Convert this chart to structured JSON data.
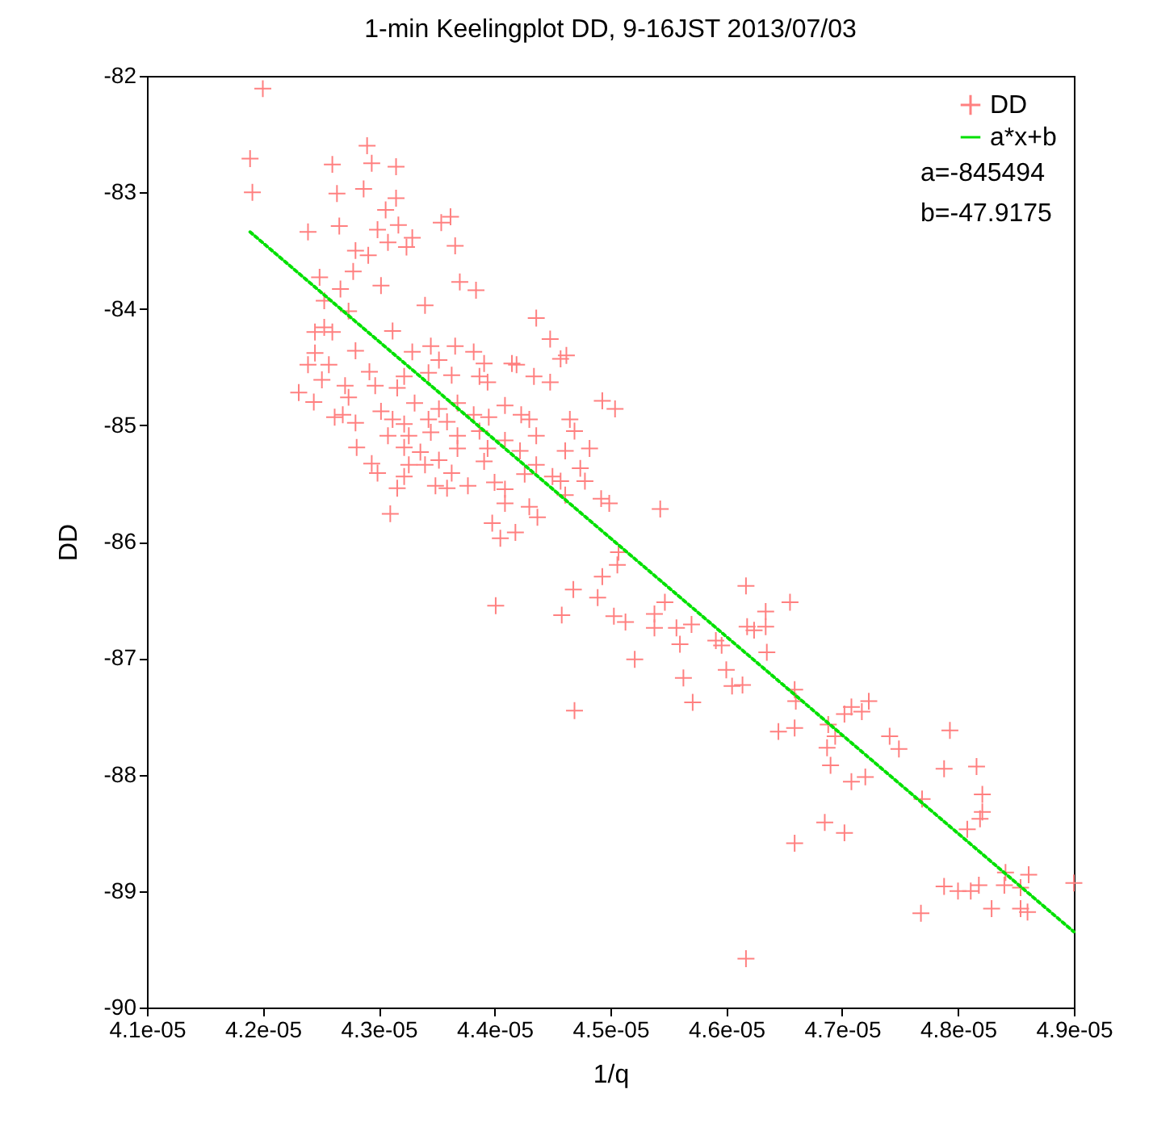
{
  "chart_data": {
    "type": "scatter",
    "title": "1-min Keelingplot DD, 9-16JST 2013/07/03",
    "xlabel": "1/q",
    "ylabel": "DD",
    "legend": "top right",
    "line_style": "dotted",
    "grid": false,
    "xlim": [
      4.1e-05,
      4.9e-05
    ],
    "ylim": [
      -90,
      -82
    ],
    "xticks": [
      {
        "value": 4.1e-05,
        "label": "4.1e-05"
      },
      {
        "value": 4.2e-05,
        "label": "4.2e-05"
      },
      {
        "value": 4.3e-05,
        "label": "4.3e-05"
      },
      {
        "value": 4.4e-05,
        "label": "4.4e-05"
      },
      {
        "value": 4.5e-05,
        "label": "4.5e-05"
      },
      {
        "value": 4.6e-05,
        "label": "4.6e-05"
      },
      {
        "value": 4.7e-05,
        "label": "4.7e-05"
      },
      {
        "value": 4.8e-05,
        "label": "4.8e-05"
      },
      {
        "value": 4.9e-05,
        "label": "4.9e-05"
      }
    ],
    "yticks": [
      -90,
      -89,
      -88,
      -87,
      -86,
      -85,
      -84,
      -83,
      -82
    ],
    "annotations": [
      "a=-845494",
      "b=-47.9175"
    ],
    "series": [
      {
        "name": "DD",
        "marker": "cross",
        "color": "#ff8080",
        "x": [
          4.2e-05,
          4.189e-05,
          4.191e-05,
          4.29e-05,
          4.294e-05,
          4.26e-05,
          4.315e-05,
          4.264e-05,
          4.287e-05,
          4.315e-05,
          4.306e-05,
          4.266e-05,
          4.239e-05,
          4.299e-05,
          4.317e-05,
          4.354e-05,
          4.362e-05,
          4.329e-05,
          4.308e-05,
          4.324e-05,
          4.28e-05,
          4.291e-05,
          4.366e-05,
          4.278e-05,
          4.249e-05,
          4.302e-05,
          4.37e-05,
          4.384e-05,
          4.267e-05,
          4.253e-05,
          4.274e-05,
          4.34e-05,
          4.436e-05,
          4.253e-05,
          4.245e-05,
          4.26e-05,
          4.312e-05,
          4.448e-05,
          4.28e-05,
          4.366e-05,
          4.329e-05,
          4.345e-05,
          4.352e-05,
          4.457e-05,
          4.462e-05,
          4.419e-05,
          4.245e-05,
          4.239e-05,
          4.257e-05,
          4.292e-05,
          4.382e-05,
          4.391e-05,
          4.434e-05,
          4.448e-05,
          4.251e-05,
          4.271e-05,
          4.297e-05,
          4.316e-05,
          4.394e-05,
          4.231e-05,
          4.244e-05,
          4.274e-05,
          4.322e-05,
          4.343e-05,
          4.363e-05,
          4.387e-05,
          4.415e-05,
          4.493e-05,
          4.504e-05,
          4.302e-05,
          4.331e-05,
          4.352e-05,
          4.368e-05,
          4.382e-05,
          4.409e-05,
          4.423e-05,
          4.262e-05,
          4.269e-05,
          4.28e-05,
          4.312e-05,
          4.322e-05,
          4.343e-05,
          4.359e-05,
          4.395e-05,
          4.43e-05,
          4.465e-05,
          4.469e-05,
          4.436e-05,
          4.308e-05,
          4.326e-05,
          4.345e-05,
          4.368e-05,
          4.387e-05,
          4.409e-05,
          4.322e-05,
          4.281e-05,
          4.336e-05,
          4.368e-05,
          4.394e-05,
          4.422e-05,
          4.461e-05,
          4.482e-05,
          4.294e-05,
          4.326e-05,
          4.34e-05,
          4.352e-05,
          4.391e-05,
          4.436e-05,
          4.299e-05,
          4.322e-05,
          4.363e-05,
          4.426e-05,
          4.45e-05,
          4.457e-05,
          4.474e-05,
          4.478e-05,
          4.316e-05,
          4.349e-05,
          4.359e-05,
          4.377e-05,
          4.4e-05,
          4.409e-05,
          4.461e-05,
          4.492e-05,
          4.499e-05,
          4.409e-05,
          4.43e-05,
          4.31e-05,
          4.437e-05,
          4.398e-05,
          4.405e-05,
          4.418e-05,
          4.543e-05,
          4.401e-05,
          4.468e-05,
          4.458e-05,
          4.489e-05,
          4.493e-05,
          4.506e-05,
          4.507e-05,
          4.503e-05,
          4.513e-05,
          4.469e-05,
          4.521e-05,
          4.538e-05,
          4.538e-05,
          4.547e-05,
          4.557e-05,
          4.56e-05,
          4.57e-05,
          4.563e-05,
          4.571e-05,
          4.591e-05,
          4.596e-05,
          4.6e-05,
          4.605e-05,
          4.614e-05,
          4.617e-05,
          4.618e-05,
          4.624e-05,
          4.634e-05,
          4.634e-05,
          4.635e-05,
          4.655e-05,
          4.659e-05,
          4.66e-05,
          4.645e-05,
          4.659e-05,
          4.688e-05,
          4.694e-05,
          4.687e-05,
          4.69e-05,
          4.708e-05,
          4.702e-05,
          4.717e-05,
          4.723e-05,
          4.741e-05,
          4.749e-05,
          4.708e-05,
          4.72e-05,
          4.793e-05,
          4.788e-05,
          4.816e-05,
          4.821e-05,
          4.821e-05,
          4.819e-05,
          4.808e-05,
          4.685e-05,
          4.702e-05,
          4.659e-05,
          4.769e-05,
          4.841e-05,
          4.861e-05,
          4.84e-05,
          4.854e-05,
          4.788e-05,
          4.8e-05,
          4.811e-05,
          4.818e-05,
          4.829e-05,
          4.854e-05,
          4.86e-05,
          4.768e-05,
          4.9e-05,
          4.617e-05
        ],
        "values": [
          -82.11,
          -82.71,
          -83.0,
          -82.6,
          -82.75,
          -82.76,
          -82.78,
          -83.01,
          -82.97,
          -83.05,
          -83.15,
          -83.29,
          -83.34,
          -83.32,
          -83.28,
          -83.26,
          -83.21,
          -83.39,
          -83.43,
          -83.47,
          -83.5,
          -83.54,
          -83.46,
          -83.68,
          -83.73,
          -83.8,
          -83.77,
          -83.84,
          -83.83,
          -83.93,
          -84.02,
          -83.97,
          -84.08,
          -84.16,
          -84.2,
          -84.2,
          -84.19,
          -84.26,
          -84.36,
          -84.32,
          -84.37,
          -84.32,
          -84.44,
          -84.43,
          -84.4,
          -84.48,
          -84.38,
          -84.48,
          -84.48,
          -84.54,
          -84.37,
          -84.47,
          -84.58,
          -84.63,
          -84.61,
          -84.66,
          -84.66,
          -84.68,
          -84.63,
          -84.72,
          -84.8,
          -84.76,
          -84.58,
          -84.55,
          -84.57,
          -84.58,
          -84.47,
          -84.79,
          -84.86,
          -84.88,
          -84.81,
          -84.86,
          -84.81,
          -84.91,
          -84.83,
          -84.91,
          -84.93,
          -84.91,
          -84.98,
          -84.95,
          -84.99,
          -84.95,
          -84.97,
          -84.93,
          -84.95,
          -84.95,
          -85.05,
          -85.09,
          -85.09,
          -85.09,
          -85.06,
          -85.09,
          -85.05,
          -85.13,
          -85.19,
          -85.19,
          -85.23,
          -85.2,
          -85.2,
          -85.22,
          -85.22,
          -85.2,
          -85.33,
          -85.34,
          -85.34,
          -85.3,
          -85.31,
          -85.34,
          -85.41,
          -85.44,
          -85.41,
          -85.42,
          -85.44,
          -85.48,
          -85.37,
          -85.48,
          -85.54,
          -85.52,
          -85.54,
          -85.52,
          -85.49,
          -85.55,
          -85.6,
          -85.63,
          -85.67,
          -85.67,
          -85.7,
          -85.76,
          -85.79,
          -85.84,
          -85.97,
          -85.92,
          -85.72,
          -86.55,
          -86.41,
          -86.63,
          -86.48,
          -86.3,
          -86.2,
          -86.09,
          -86.64,
          -86.69,
          -87.45,
          -87.01,
          -86.62,
          -86.74,
          -86.52,
          -86.74,
          -86.88,
          -86.71,
          -87.17,
          -87.38,
          -86.85,
          -86.89,
          -87.1,
          -87.24,
          -87.23,
          -86.38,
          -86.73,
          -86.76,
          -86.6,
          -86.73,
          -86.95,
          -86.52,
          -87.27,
          -87.37,
          -87.63,
          -87.6,
          -87.57,
          -87.67,
          -87.77,
          -87.92,
          -87.42,
          -87.48,
          -87.46,
          -87.37,
          -87.67,
          -87.78,
          -88.06,
          -88.02,
          -87.62,
          -87.95,
          -87.93,
          -88.17,
          -88.32,
          -88.38,
          -88.47,
          -88.41,
          -88.5,
          -88.59,
          -88.21,
          -88.84,
          -88.86,
          -88.95,
          -88.97,
          -88.96,
          -89.0,
          -89.0,
          -88.95,
          -89.15,
          -89.15,
          -89.18,
          -89.19,
          -88.93,
          -89.58
        ]
      },
      {
        "name": "a*x+b",
        "type": "line",
        "color": "#00e000",
        "x": [
          4.189e-05,
          4.9e-05
        ],
        "values": [
          -83.34,
          -89.35
        ]
      }
    ]
  }
}
